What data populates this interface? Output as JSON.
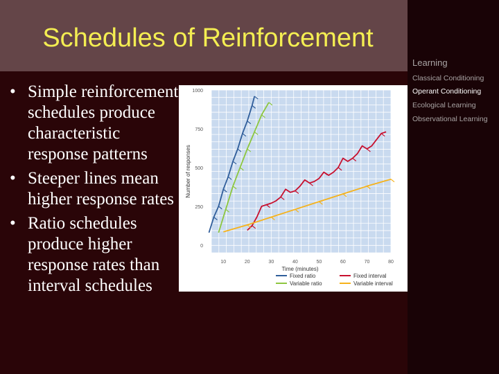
{
  "slide": {
    "title": "Schedules of Reinforcement",
    "bullets": [
      "Simple reinforcement schedules produce characteristic response patterns",
      "Steeper lines mean higher response rates",
      "Ratio schedules produce higher response rates than interval schedules"
    ]
  },
  "sidebar": {
    "header": "Learning",
    "items": [
      {
        "label": "Classical Conditioning",
        "active": false
      },
      {
        "label": "Operant Conditioning",
        "active": true
      },
      {
        "label": "Ecological Learning",
        "active": false
      },
      {
        "label": "Observational Learning",
        "active": false
      }
    ]
  },
  "colors": {
    "title_bar": "#644548",
    "title_text": "#f4ee52",
    "background": "#2a0508",
    "sidebar": "#190306",
    "plot_area": "#c9daef",
    "grid": "#ffffff"
  },
  "chart_data": {
    "type": "line",
    "xlabel": "Time (minutes)",
    "ylabel": "Number of responses",
    "x_ticks": [
      "10",
      "20",
      "30",
      "40",
      "50",
      "60",
      "70",
      "80"
    ],
    "y_ticks": [
      "0",
      "250",
      "500",
      "750",
      "1000"
    ],
    "xlim": [
      5,
      80
    ],
    "ylim": [
      -50,
      1000
    ],
    "grid": true,
    "legend_position": "bottom",
    "series": [
      {
        "name": "Fixed ratio",
        "color": "#2f5d9a",
        "x": [
          4,
          6,
          8,
          10,
          12,
          14,
          16,
          18,
          20,
          22,
          23
        ],
        "y": [
          80,
          180,
          250,
          360,
          440,
          540,
          620,
          720,
          800,
          900,
          960
        ]
      },
      {
        "name": "Variable ratio",
        "color": "#8dc63f",
        "x": [
          8,
          11,
          14,
          17,
          20,
          23,
          26,
          29
        ],
        "y": [
          80,
          230,
          380,
          500,
          620,
          730,
          840,
          920
        ]
      },
      {
        "name": "Fixed interval",
        "color": "#c8102e",
        "x": [
          20,
          22,
          24,
          26,
          28,
          30,
          32,
          34,
          36,
          38,
          40,
          42,
          44,
          46,
          48,
          50,
          52,
          54,
          56,
          58,
          60,
          62,
          64,
          66,
          68,
          70,
          72,
          74,
          76,
          78
        ],
        "y": [
          95,
          125,
          180,
          250,
          260,
          270,
          285,
          310,
          360,
          340,
          350,
          380,
          420,
          400,
          410,
          430,
          470,
          450,
          470,
          500,
          560,
          540,
          560,
          590,
          640,
          620,
          640,
          680,
          720,
          730
        ]
      },
      {
        "name": "Variable interval",
        "color": "#f6b21a",
        "x": [
          10,
          20,
          30,
          40,
          50,
          60,
          70,
          80
        ],
        "y": [
          85,
          130,
          180,
          230,
          280,
          330,
          380,
          425
        ]
      }
    ]
  }
}
